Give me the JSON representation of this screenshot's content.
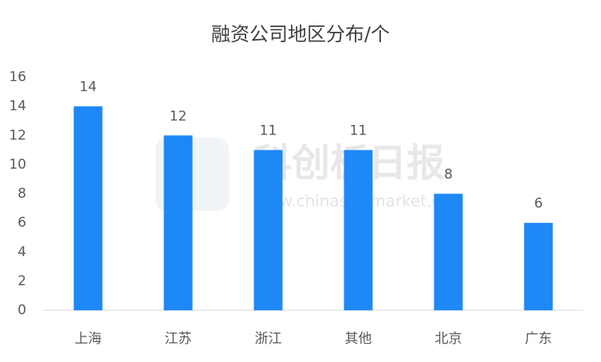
{
  "chart_data": {
    "type": "bar",
    "title": "融资公司地区分布/个",
    "categories": [
      "上海",
      "江苏",
      "浙江",
      "其他",
      "北京",
      "广东"
    ],
    "values": [
      14,
      12,
      11,
      11,
      8,
      6
    ],
    "color": "#1e88f6",
    "ylim": [
      0,
      16
    ],
    "yticks": [
      0,
      2,
      4,
      6,
      8,
      10,
      12,
      14,
      16
    ],
    "grid": false,
    "watermark": {
      "title": "科创板日报",
      "url": "www.chinastarmarket.cn"
    }
  }
}
